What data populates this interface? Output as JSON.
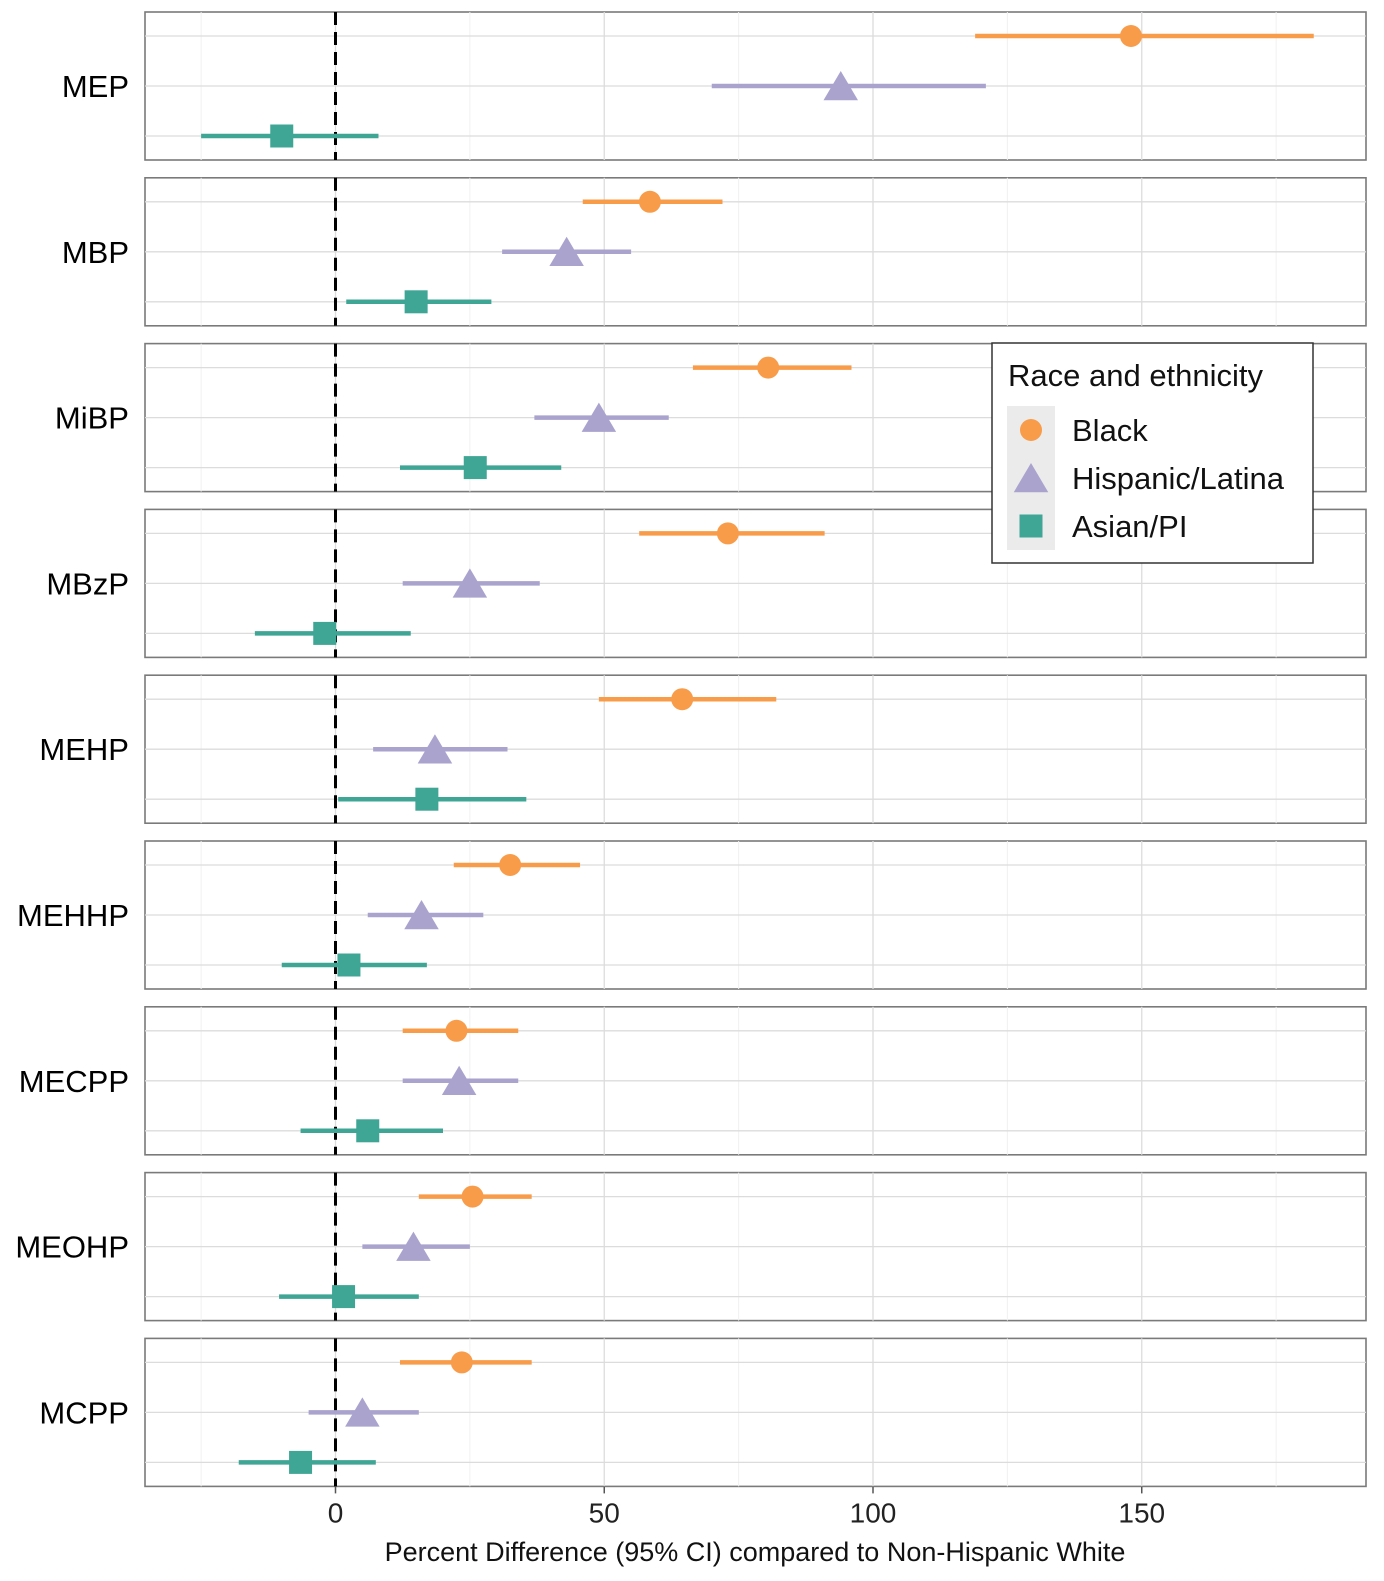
{
  "chart_data": {
    "type": "scatter",
    "subtype": "forest-plot with 95% CI error bars, faceted by metabolite",
    "xlabel": "Percent Difference (95% CI) compared to Non-Hispanic White",
    "xticks": [
      0,
      50,
      100,
      150
    ],
    "xlim": [
      -35,
      192
    ],
    "reference_line": 0,
    "grid": true,
    "legend": {
      "title": "Race and ethnicity",
      "placement": "top-right",
      "entries": [
        {
          "name": "Black",
          "shape": "circle",
          "color": "#F89C4A"
        },
        {
          "name": "Hispanic/Latina",
          "shape": "triangle",
          "color": "#A9A3CE"
        },
        {
          "name": "Asian/PI",
          "shape": "square",
          "color": "#3FA595"
        }
      ]
    },
    "panels": [
      {
        "label": "MEP",
        "points": [
          {
            "group": "Black",
            "est": 148,
            "lo": 119,
            "hi": 182
          },
          {
            "group": "Hispanic/Latina",
            "est": 94,
            "lo": 70,
            "hi": 121
          },
          {
            "group": "Asian/PI",
            "est": -10,
            "lo": -25,
            "hi": 8
          }
        ]
      },
      {
        "label": "MBP",
        "points": [
          {
            "group": "Black",
            "est": 58.5,
            "lo": 46,
            "hi": 72
          },
          {
            "group": "Hispanic/Latina",
            "est": 43,
            "lo": 31,
            "hi": 55
          },
          {
            "group": "Asian/PI",
            "est": 15,
            "lo": 2,
            "hi": 29
          }
        ]
      },
      {
        "label": "MiBP",
        "points": [
          {
            "group": "Black",
            "est": 80.5,
            "lo": 66.5,
            "hi": 96
          },
          {
            "group": "Hispanic/Latina",
            "est": 49,
            "lo": 37,
            "hi": 62
          },
          {
            "group": "Asian/PI",
            "est": 26,
            "lo": 12,
            "hi": 42
          }
        ]
      },
      {
        "label": "MBzP",
        "points": [
          {
            "group": "Black",
            "est": 73,
            "lo": 56.5,
            "hi": 91
          },
          {
            "group": "Hispanic/Latina",
            "est": 25,
            "lo": 12.5,
            "hi": 38
          },
          {
            "group": "Asian/PI",
            "est": -2,
            "lo": -15,
            "hi": 14
          }
        ]
      },
      {
        "label": "MEHP",
        "points": [
          {
            "group": "Black",
            "est": 64.5,
            "lo": 49,
            "hi": 82
          },
          {
            "group": "Hispanic/Latina",
            "est": 18.5,
            "lo": 7,
            "hi": 32
          },
          {
            "group": "Asian/PI",
            "est": 17,
            "lo": 0.5,
            "hi": 35.5
          }
        ]
      },
      {
        "label": "MEHHP",
        "points": [
          {
            "group": "Black",
            "est": 32.5,
            "lo": 22,
            "hi": 45.5
          },
          {
            "group": "Hispanic/Latina",
            "est": 16,
            "lo": 6,
            "hi": 27.5
          },
          {
            "group": "Asian/PI",
            "est": 2.5,
            "lo": -10,
            "hi": 17
          }
        ]
      },
      {
        "label": "MECPP",
        "points": [
          {
            "group": "Black",
            "est": 22.5,
            "lo": 12.5,
            "hi": 34
          },
          {
            "group": "Hispanic/Latina",
            "est": 23,
            "lo": 12.5,
            "hi": 34
          },
          {
            "group": "Asian/PI",
            "est": 6,
            "lo": -6.5,
            "hi": 20
          }
        ]
      },
      {
        "label": "MEOHP",
        "points": [
          {
            "group": "Black",
            "est": 25.5,
            "lo": 15.5,
            "hi": 36.5
          },
          {
            "group": "Hispanic/Latina",
            "est": 14.5,
            "lo": 5,
            "hi": 25
          },
          {
            "group": "Asian/PI",
            "est": 1.5,
            "lo": -10.5,
            "hi": 15.5
          }
        ]
      },
      {
        "label": "MCPP",
        "points": [
          {
            "group": "Black",
            "est": 23.5,
            "lo": 12,
            "hi": 36.5
          },
          {
            "group": "Hispanic/Latina",
            "est": 5,
            "lo": -5,
            "hi": 15.5
          },
          {
            "group": "Asian/PI",
            "est": -6.5,
            "lo": -18,
            "hi": 7.5
          }
        ]
      }
    ]
  }
}
